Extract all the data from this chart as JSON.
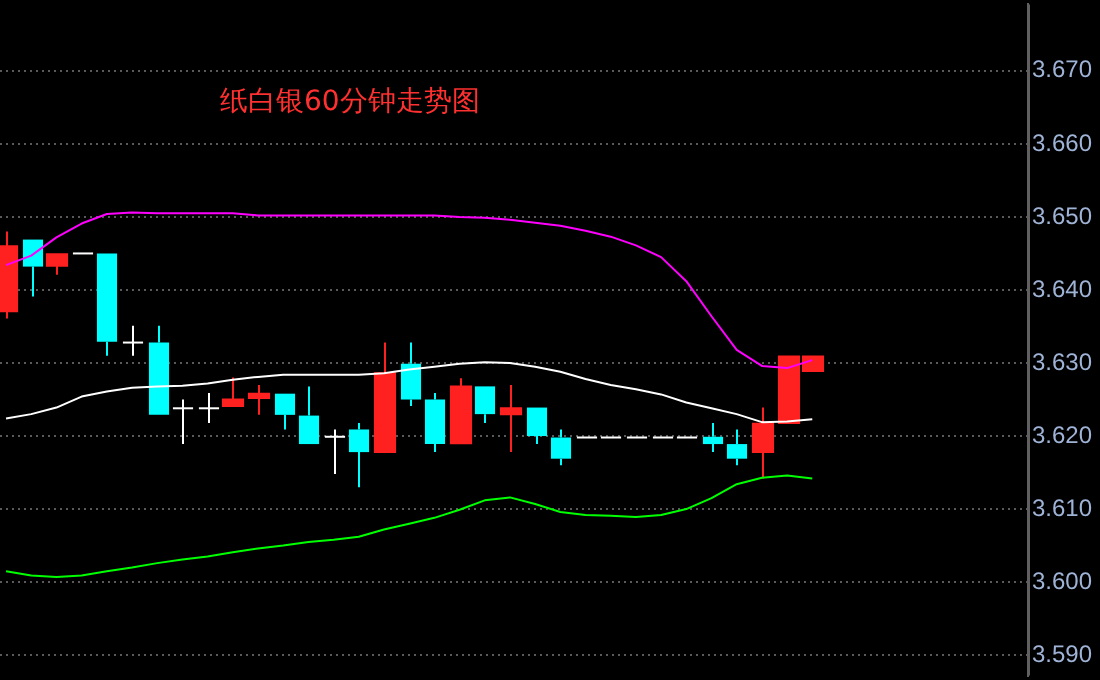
{
  "chart_data": {
    "type": "candlestick",
    "title": "纸白银60分钟走势图",
    "categories": [
      null,
      null,
      null,
      null,
      null,
      null,
      null,
      null,
      null,
      null,
      null,
      null,
      null,
      null,
      null,
      null,
      null,
      null,
      null,
      null,
      null,
      null,
      null,
      null,
      null,
      null,
      null,
      null,
      null,
      null,
      null,
      null,
      null
    ],
    "ohlc": [
      [
        3.6371,
        3.648,
        3.6361,
        3.646
      ],
      [
        3.6469,
        3.6469,
        3.6391,
        3.6432
      ],
      [
        3.6433,
        3.6449,
        3.6421,
        3.6449
      ],
      [
        3.645,
        3.645,
        3.645,
        3.645
      ],
      [
        3.645,
        3.645,
        3.631,
        3.6329
      ],
      [
        3.6328,
        3.6351,
        3.631,
        3.6328
      ],
      [
        3.6328,
        3.6351,
        3.6229,
        3.6229
      ],
      [
        3.6238,
        3.625,
        3.6189,
        3.6238
      ],
      [
        3.6238,
        3.6259,
        3.6218,
        3.6238
      ],
      [
        3.6241,
        3.628,
        3.6241,
        3.625
      ],
      [
        3.6252,
        3.627,
        3.6229,
        3.6258
      ],
      [
        3.6258,
        3.6258,
        3.6209,
        3.6229
      ],
      [
        3.6228,
        3.6268,
        3.6189,
        3.6189
      ],
      [
        3.6199,
        3.6209,
        3.6148,
        3.6199
      ],
      [
        3.6209,
        3.6218,
        3.613,
        3.6178
      ],
      [
        3.6178,
        3.6328,
        3.6178,
        3.6286
      ],
      [
        3.6299,
        3.6328,
        3.6241,
        3.625
      ],
      [
        3.625,
        3.6259,
        3.6178,
        3.6189
      ],
      [
        3.619,
        3.6279,
        3.619,
        3.6268
      ],
      [
        3.6268,
        3.6268,
        3.6218,
        3.623
      ],
      [
        3.623,
        3.627,
        3.6178,
        3.6238
      ],
      [
        3.6239,
        3.6239,
        3.6189,
        3.62
      ],
      [
        3.6198,
        3.6209,
        3.616,
        3.6169
      ],
      [
        3.6198,
        3.6198,
        3.6198,
        3.6198
      ],
      [
        3.6198,
        3.6198,
        3.6198,
        3.6198
      ],
      [
        3.6198,
        3.6198,
        3.6198,
        3.6198
      ],
      [
        3.6198,
        3.6198,
        3.6198,
        3.6198
      ],
      [
        3.6198,
        3.6198,
        3.6198,
        3.6198
      ],
      [
        3.6199,
        3.6218,
        3.6178,
        3.6189
      ],
      [
        3.6189,
        3.6209,
        3.616,
        3.6169
      ],
      [
        3.6178,
        3.6239,
        3.6142,
        3.6217
      ],
      [
        3.6218,
        3.6309,
        3.6218,
        3.6309
      ],
      [
        3.6289,
        3.6309,
        3.6289,
        3.6309
      ]
    ],
    "colors": [
      "#ff2020",
      "#00ffff",
      "#ff2020",
      "#ffffff",
      "#00ffff",
      "#ffffff",
      "#00ffff",
      "#ffffff",
      "#ffffff",
      "#ff2020",
      "#ff2020",
      "#00ffff",
      "#00ffff",
      "#ffffff",
      "#00ffff",
      "#ff2020",
      "#00ffff",
      "#00ffff",
      "#ff2020",
      "#00ffff",
      "#ff2020",
      "#00ffff",
      "#00ffff",
      "#ffffff",
      "#ffffff",
      "#ffffff",
      "#ffffff",
      "#ffffff",
      "#00ffff",
      "#00ffff",
      "#ff2020",
      "#ff2020",
      "#ff2020"
    ],
    "series": [
      {
        "type": "line",
        "color": "#ff00ff",
        "values": [
          3.6434,
          3.6447,
          3.6472,
          3.6491,
          3.6504,
          3.6506,
          3.6505,
          3.6505,
          3.6505,
          3.6505,
          3.6502,
          3.6502,
          3.6502,
          3.6502,
          3.6502,
          3.6502,
          3.6502,
          3.6502,
          3.65,
          3.6499,
          3.6496,
          3.6492,
          3.6488,
          3.6481,
          3.6473,
          3.6461,
          3.6445,
          3.6412,
          3.6364,
          3.6318,
          3.6296,
          3.6293,
          3.6304
        ]
      },
      {
        "type": "line",
        "color": "#ffffff",
        "values": [
          3.6224,
          3.623,
          3.6239,
          3.6254,
          3.6261,
          3.6266,
          3.6268,
          3.6269,
          3.6272,
          3.6277,
          3.6281,
          3.6284,
          3.6284,
          3.6284,
          3.6284,
          3.6286,
          3.6291,
          3.6295,
          3.6299,
          3.6301,
          3.63,
          3.6295,
          3.6288,
          3.6278,
          3.627,
          3.6264,
          3.6257,
          3.6246,
          3.6238,
          3.623,
          3.6219,
          3.622,
          3.6223
        ]
      },
      {
        "type": "line",
        "color": "#00ff00",
        "values": [
          3.6015,
          3.6009,
          3.6007,
          3.6009,
          3.6015,
          3.602,
          3.6026,
          3.6031,
          3.6035,
          3.6041,
          3.6046,
          3.605,
          3.6055,
          3.6058,
          3.6062,
          3.6072,
          3.608,
          3.6088,
          3.6099,
          3.6112,
          3.6116,
          3.6107,
          3.6096,
          3.6092,
          3.6091,
          3.6089,
          3.6092,
          3.61,
          3.6115,
          3.6134,
          3.6143,
          3.6146,
          3.6142
        ]
      }
    ],
    "ylim": [
      3.5872,
      3.6791
    ],
    "yticks": [
      {
        "value": 3.59,
        "label": "3.590"
      },
      {
        "value": 3.6,
        "label": "3.600"
      },
      {
        "value": 3.61,
        "label": "3.610"
      },
      {
        "value": 3.62,
        "label": "3.620"
      },
      {
        "value": 3.63,
        "label": "3.630"
      },
      {
        "value": 3.64,
        "label": "3.640"
      },
      {
        "value": 3.65,
        "label": "3.650"
      },
      {
        "value": 3.66,
        "label": "3.660"
      },
      {
        "value": 3.67,
        "label": "3.670"
      }
    ],
    "grid": "y",
    "tick_labels": "y"
  }
}
